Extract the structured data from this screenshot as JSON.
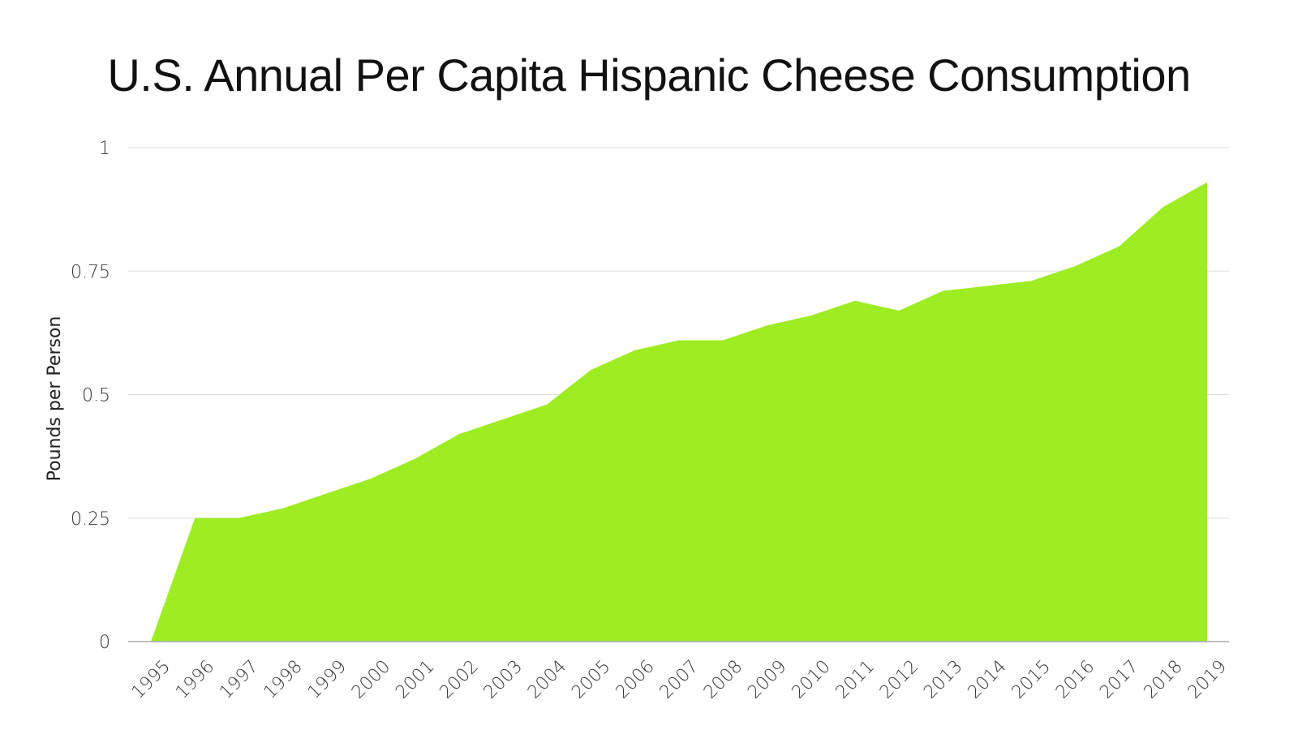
{
  "chart_data": {
    "type": "area",
    "title": "U.S. Annual Per Capita Hispanic Cheese Consumption",
    "xlabel": "",
    "ylabel": "Pounds per Person",
    "x": [
      "1995",
      "1996",
      "1997",
      "1998",
      "1999",
      "2000",
      "2001",
      "2002",
      "2003",
      "2004",
      "2005",
      "2006",
      "2007",
      "2008",
      "2009",
      "2010",
      "2011",
      "2012",
      "2013",
      "2014",
      "2015",
      "2016",
      "2017",
      "2018",
      "2019"
    ],
    "values": [
      0,
      0.25,
      0.25,
      0.27,
      0.3,
      0.33,
      0.37,
      0.42,
      0.45,
      0.48,
      0.55,
      0.59,
      0.61,
      0.61,
      0.64,
      0.66,
      0.69,
      0.67,
      0.71,
      0.72,
      0.73,
      0.76,
      0.8,
      0.88,
      0.93
    ],
    "yticks": [
      "0",
      "0.25",
      "0.5",
      "0.75",
      "1"
    ],
    "ylim": [
      0,
      1
    ],
    "grid": true,
    "fill_color": "#9ded22",
    "grid_color": "#dddddd",
    "axis_color": "#aaaaaa"
  }
}
